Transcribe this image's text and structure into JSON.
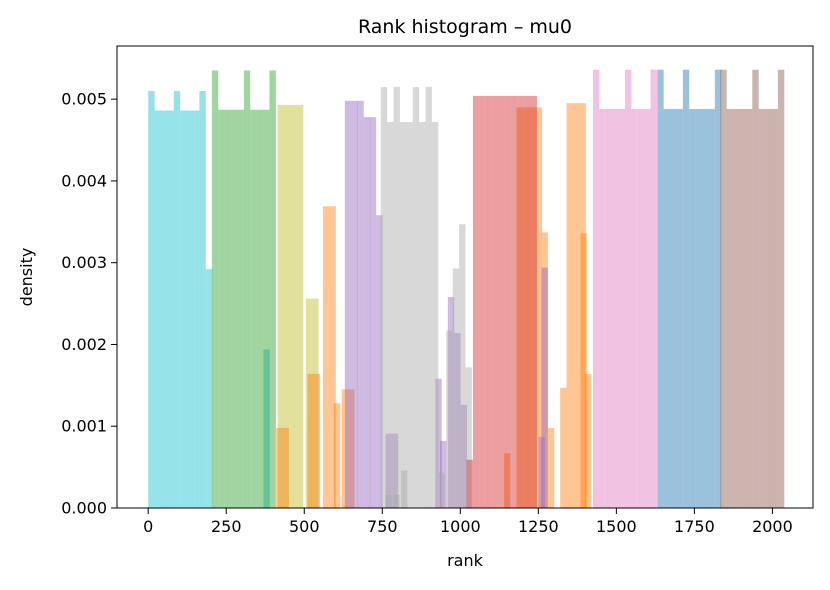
{
  "chart_data": {
    "type": "histogram",
    "title": "Rank histogram – mu0",
    "xlabel": "rank",
    "ylabel": "density",
    "xlim": [
      -100,
      2130
    ],
    "ylim": [
      0,
      0.00565
    ],
    "xticks": [
      0,
      250,
      500,
      750,
      1000,
      1250,
      1500,
      1750,
      2000
    ],
    "xtick_labels": [
      "0",
      "250",
      "500",
      "750",
      "1000",
      "1250",
      "1500",
      "1750",
      "2000"
    ],
    "yticks": [
      0,
      0.001,
      0.002,
      0.003,
      0.004,
      0.005
    ],
    "ytick_labels": [
      "0.000",
      "0.001",
      "0.002",
      "0.003",
      "0.004",
      "0.005"
    ],
    "grid": false,
    "legend": false,
    "bin_width": 20.5,
    "series": [
      {
        "color": "#17becf",
        "bins": [
          [
            0,
            0.0051
          ],
          [
            20.5,
            0.00486
          ],
          [
            41,
            0.00486
          ],
          [
            61.5,
            0.00486
          ],
          [
            82,
            0.0051
          ],
          [
            102.5,
            0.00486
          ],
          [
            123,
            0.00486
          ],
          [
            143.5,
            0.00486
          ],
          [
            164,
            0.0051
          ],
          [
            184.5,
            0.00292
          ],
          [
            369,
            0.00194
          ]
        ]
      },
      {
        "color": "#2ca02c",
        "bins": [
          [
            204,
            0.00535
          ],
          [
            224.5,
            0.00487
          ],
          [
            245,
            0.00487
          ],
          [
            265.5,
            0.00487
          ],
          [
            286,
            0.00487
          ],
          [
            306.5,
            0.00535
          ],
          [
            327,
            0.00487
          ],
          [
            347.5,
            0.00487
          ],
          [
            368,
            0.00487
          ],
          [
            388.5,
            0.00535
          ]
        ]
      },
      {
        "color": "#bcbd22",
        "bins": [
          [
            415,
            0.00493
          ],
          [
            435.5,
            0.00493
          ],
          [
            456,
            0.00493
          ],
          [
            476.5,
            0.00493
          ],
          [
            505,
            0.00256
          ],
          [
            525.5,
            0.00256
          ]
        ]
      },
      {
        "color": "#ff7f0e",
        "bins": [
          [
            410,
            0.00098
          ],
          [
            430.5,
            0.00098
          ],
          [
            510,
            0.00164
          ],
          [
            530.5,
            0.00164
          ],
          [
            560,
            0.00369
          ],
          [
            580.5,
            0.00369
          ],
          [
            595,
            0.00128
          ],
          [
            620,
            0.00145
          ],
          [
            640.5,
            0.00145
          ],
          [
            1140,
            0.00067
          ],
          [
            1180,
            0.0049
          ],
          [
            1200.5,
            0.0049
          ],
          [
            1220.5,
            0.0049
          ],
          [
            1241,
            0.0049
          ],
          [
            1260,
            0.00337
          ],
          [
            1280.5,
            0.00098
          ],
          [
            1320,
            0.00147
          ],
          [
            1340.5,
            0.00495
          ],
          [
            1361,
            0.00495
          ],
          [
            1381.5,
            0.00495
          ],
          [
            1385,
            0.00336
          ],
          [
            1399,
            0.00164
          ]
        ]
      },
      {
        "color": "#9467bd",
        "bins": [
          [
            630,
            0.00498
          ],
          [
            650.5,
            0.00498
          ],
          [
            670,
            0.00498
          ],
          [
            690.5,
            0.00478
          ],
          [
            710,
            0.00478
          ],
          [
            730.5,
            0.00358
          ],
          [
            760,
            0.00091
          ],
          [
            780.5,
            0.00091
          ],
          [
            920,
            0.00158
          ],
          [
            935,
            0.00082
          ],
          [
            960,
            0.00258
          ],
          [
            980.5,
            0.00214
          ],
          [
            1001,
            0.00126
          ],
          [
            1260,
            0.00294
          ],
          [
            1250,
            0.00087
          ]
        ]
      },
      {
        "color": "#a9a9a9",
        "bins": [
          [
            745,
            0.00515
          ],
          [
            765.5,
            0.00472
          ],
          [
            786,
            0.00515
          ],
          [
            806.5,
            0.00472
          ],
          [
            827,
            0.00472
          ],
          [
            847.5,
            0.00515
          ],
          [
            868,
            0.00472
          ],
          [
            888.5,
            0.00515
          ],
          [
            909,
            0.00472
          ],
          [
            760,
            0.00016
          ],
          [
            785,
            0.00016
          ],
          [
            810,
            0.00046
          ],
          [
            930,
            0.00043
          ],
          [
            955,
            0.00217
          ],
          [
            975.5,
            0.00293
          ],
          [
            996,
            0.00347
          ],
          [
            1016.5,
            0.00172
          ]
        ]
      },
      {
        "color": "#d62728",
        "bins": [
          [
            1020,
            0.00059
          ],
          [
            1040.5,
            0.00504
          ],
          [
            1061,
            0.00504
          ],
          [
            1081.5,
            0.00504
          ],
          [
            1102,
            0.00504
          ],
          [
            1122.5,
            0.00504
          ],
          [
            1143,
            0.00504
          ],
          [
            1163.5,
            0.00504
          ],
          [
            1184,
            0.00504
          ],
          [
            1204.5,
            0.00504
          ],
          [
            1225,
            0.00504
          ]
        ]
      },
      {
        "color": "#e377c2",
        "bins": [
          [
            1425,
            0.00536
          ],
          [
            1445.5,
            0.00488
          ],
          [
            1466,
            0.00488
          ],
          [
            1486.5,
            0.00488
          ],
          [
            1507,
            0.00488
          ],
          [
            1527.5,
            0.00536
          ],
          [
            1548,
            0.00488
          ],
          [
            1568.5,
            0.00488
          ],
          [
            1589,
            0.00488
          ],
          [
            1609.5,
            0.00536
          ]
        ]
      },
      {
        "color": "#1f77b4",
        "bins": [
          [
            1631,
            0.00536
          ],
          [
            1651.5,
            0.00488
          ],
          [
            1672,
            0.00488
          ],
          [
            1692.5,
            0.00488
          ],
          [
            1713,
            0.00536
          ],
          [
            1733.5,
            0.00488
          ],
          [
            1754,
            0.00488
          ],
          [
            1774.5,
            0.00488
          ],
          [
            1795,
            0.00488
          ],
          [
            1815.5,
            0.00536
          ]
        ]
      },
      {
        "color": "#8c564b",
        "bins": [
          [
            1833,
            0.00536
          ],
          [
            1853.5,
            0.00488
          ],
          [
            1874,
            0.00488
          ],
          [
            1894.5,
            0.00488
          ],
          [
            1915,
            0.00488
          ],
          [
            1935.5,
            0.00536
          ],
          [
            1956,
            0.00488
          ],
          [
            1976.5,
            0.00488
          ],
          [
            1997,
            0.00488
          ],
          [
            2017.5,
            0.00536
          ]
        ]
      }
    ]
  }
}
